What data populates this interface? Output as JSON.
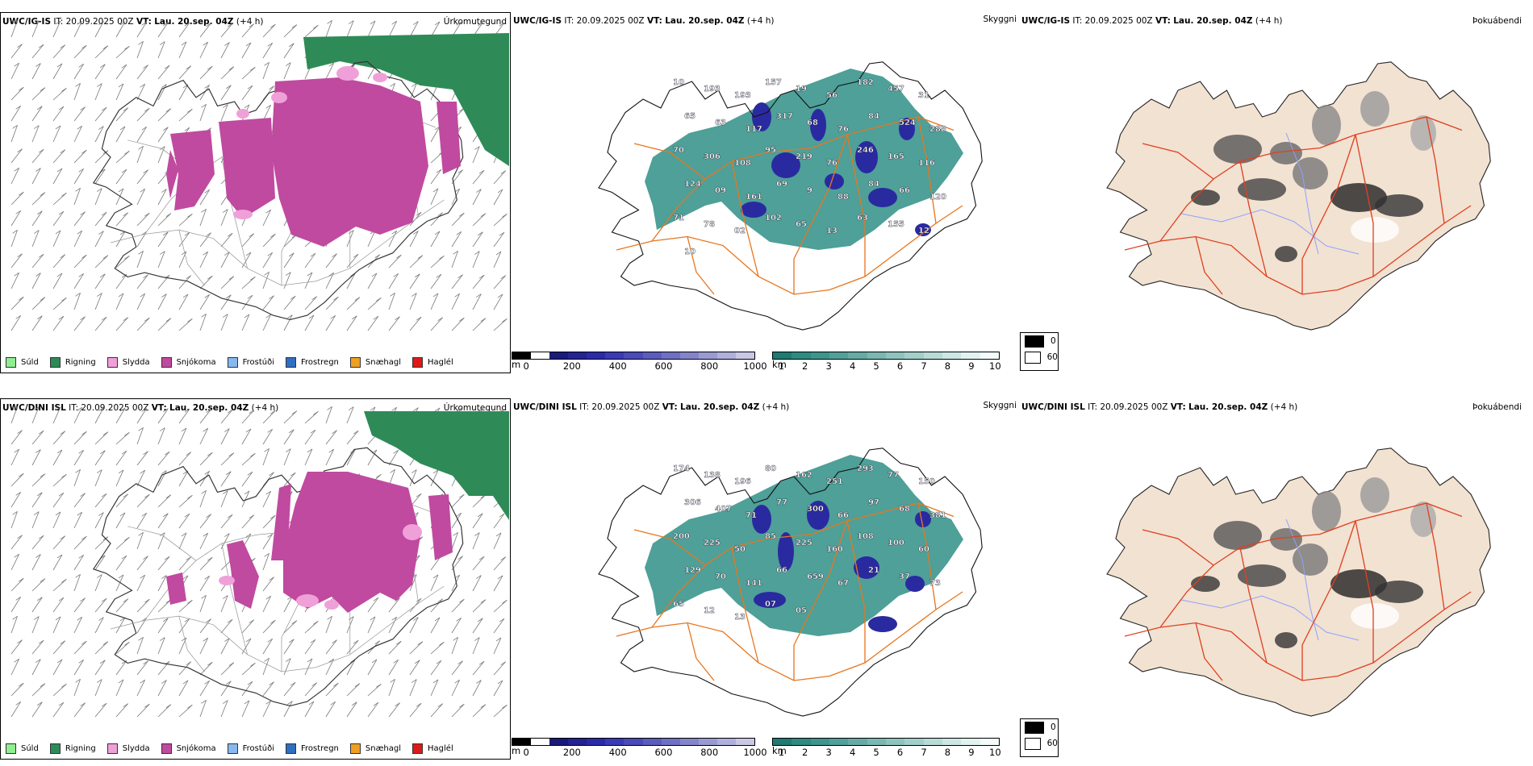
{
  "rows": [
    {
      "id": "top",
      "left": {
        "model": "UWC/IG-IS",
        "it_label": "IT:",
        "it_value": "20.09.2025 00Z",
        "vt_label": "VT:",
        "vt_value": "Lau. 20.sep. 04Z",
        "lead": "(+4 h)",
        "title": "Úrkomutegund"
      },
      "middle": {
        "model": "UWC/IG-IS",
        "it_label": "IT:",
        "it_value": "20.09.2025 00Z",
        "vt_label": "VT:",
        "vt_value": "Lau. 20.sep. 04Z",
        "lead": "(+4 h)",
        "title": "Skyggni",
        "labels": [
          "10",
          "193",
          "193",
          "157",
          "19",
          "56",
          "182",
          "457",
          "31",
          "65",
          "63",
          "117",
          "317",
          "68",
          "76",
          "84",
          "524",
          "288",
          "70",
          "306",
          "108",
          "95",
          "219",
          "76",
          "246",
          "165",
          "116",
          "124",
          "09",
          "161",
          "69",
          "9",
          "88",
          "84",
          "66",
          "120",
          "71",
          "78",
          "02",
          "102",
          "65",
          "13",
          "63",
          "155",
          "12",
          "10"
        ]
      },
      "right": {
        "model": "UWC/IG-IS",
        "it_label": "IT:",
        "it_value": "20.09.2025 00Z",
        "vt_label": "VT:",
        "vt_value": "Lau. 20.sep. 04Z",
        "lead": "(+4 h)",
        "title": "Þokuábendi"
      }
    },
    {
      "id": "bottom",
      "left": {
        "model": "UWC/DINI ISL",
        "it_label": "IT:",
        "it_value": "20.09.2025 00Z",
        "vt_label": "VT:",
        "vt_value": "Lau. 20.sep. 04Z",
        "lead": "(+4 h)",
        "title": "Úrkomutegund"
      },
      "middle": {
        "model": "UWC/DINI ISL",
        "it_label": "IT:",
        "it_value": "20.09.2025 00Z",
        "vt_label": "VT:",
        "vt_value": "Lau. 20.sep. 04Z",
        "lead": "(+4 h)",
        "title": "Skyggni",
        "labels": [
          "174",
          "138",
          "196",
          "80",
          "162",
          "251",
          "293",
          "77",
          "150",
          "306",
          "407",
          "71",
          "77",
          "300",
          "66",
          "97",
          "68",
          "381",
          "200",
          "225",
          "50",
          "85",
          "225",
          "160",
          "108",
          "100",
          "60",
          "129",
          "70",
          "141",
          "66",
          "659",
          "67",
          "21",
          "37",
          "73",
          "65",
          "12",
          "13",
          "07",
          "05"
        ]
      },
      "right": {
        "model": "UWC/DINI ISL",
        "it_label": "IT:",
        "it_value": "20.09.2025 00Z",
        "vt_label": "VT:",
        "vt_value": "Lau. 20.sep. 04Z",
        "lead": "(+4 h)",
        "title": "Þokuábendi"
      }
    }
  ],
  "precip_legend": [
    {
      "label": "Súld",
      "color": "#90ee90"
    },
    {
      "label": "Rigning",
      "color": "#2e8b57"
    },
    {
      "label": "Slydda",
      "color": "#f0a0d8"
    },
    {
      "label": "Snjókoma",
      "color": "#c04aa0"
    },
    {
      "label": "Frostúði",
      "color": "#87b8f0"
    },
    {
      "label": "Frostregn",
      "color": "#2f6fc0"
    },
    {
      "label": "Snæhagl",
      "color": "#f0a020"
    },
    {
      "label": "Haglél",
      "color": "#e01818"
    }
  ],
  "colors": {
    "rain": "#2e8b57",
    "snow": "#c04aa0",
    "sleet": "#f0a0d8",
    "vis_low": "#2a2aa0",
    "vis_high": "#2f8f86",
    "fog_land": "#f2e2d2",
    "roads": "#e8761f",
    "roads_fog": "#e04020",
    "rivers": "#8fa0ff"
  },
  "colorbar_m": {
    "unit": "m",
    "ticks": [
      "0",
      "200",
      "400",
      "600",
      "800",
      "1000"
    ],
    "colors": [
      "#000000",
      "#ffffff",
      "#1a1a7a",
      "#232392",
      "#2b2ba8",
      "#3a3ab4",
      "#4a4ab8",
      "#5c5cbd",
      "#6f6fc4",
      "#8484cb",
      "#9a9ad3",
      "#b0b0dc",
      "#c8c8e6"
    ]
  },
  "colorbar_km": {
    "unit": "km",
    "ticks": [
      "1",
      "2",
      "3",
      "4",
      "5",
      "6",
      "7",
      "8",
      "9",
      "10"
    ],
    "colors": [
      "#1f7a72",
      "#2f8a82",
      "#3f948c",
      "#52a099",
      "#66aca5",
      "#7ab8b1",
      "#8ec4be",
      "#a3cfca",
      "#b8dbd7",
      "#cde7e4",
      "#e2f2f0",
      "#f4fbfa"
    ]
  },
  "fog_legend": {
    "items": [
      "0",
      "60"
    ]
  }
}
